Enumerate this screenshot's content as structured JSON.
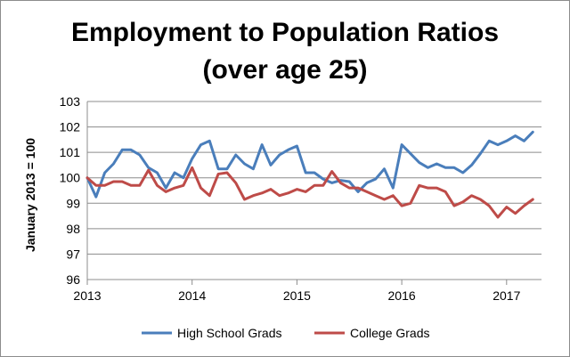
{
  "chart_data": {
    "type": "line",
    "title_lines": [
      "Employment to Population Ratios",
      "(over age 25)"
    ],
    "ylabel": "January 2013 = 100",
    "xlabel": "",
    "ylim": [
      96,
      103
    ],
    "yticks": [
      96,
      97,
      98,
      99,
      100,
      101,
      102,
      103
    ],
    "xlim": [
      2013,
      2017.333
    ],
    "xticks": [
      2013,
      2014,
      2015,
      2016,
      2017
    ],
    "x_start": 2013,
    "x_step_months": 1,
    "grid": true,
    "legend_position": "bottom",
    "series": [
      {
        "name": "High School Grads",
        "color": "#4a7ebb",
        "values": [
          100.0,
          99.25,
          100.2,
          100.55,
          101.1,
          101.1,
          100.9,
          100.4,
          100.2,
          99.6,
          100.2,
          100.0,
          100.75,
          101.3,
          101.45,
          100.35,
          100.35,
          100.9,
          100.55,
          100.35,
          101.3,
          100.5,
          100.9,
          101.1,
          101.25,
          100.2,
          100.2,
          99.95,
          99.8,
          99.9,
          99.85,
          99.45,
          99.8,
          99.95,
          100.35,
          99.6,
          101.3,
          100.95,
          100.6,
          100.4,
          100.55,
          100.4,
          100.4,
          100.2,
          100.5,
          100.95,
          101.45,
          101.3,
          101.45,
          101.65,
          101.45,
          101.8
        ]
      },
      {
        "name": "College Grads",
        "color": "#be4b48",
        "values": [
          100.0,
          99.7,
          99.7,
          99.85,
          99.85,
          99.7,
          99.7,
          100.3,
          99.7,
          99.45,
          99.6,
          99.7,
          100.4,
          99.6,
          99.3,
          100.15,
          100.2,
          99.8,
          99.15,
          99.3,
          99.4,
          99.55,
          99.3,
          99.4,
          99.55,
          99.45,
          99.7,
          99.7,
          100.25,
          99.8,
          99.6,
          99.6,
          99.45,
          99.3,
          99.15,
          99.3,
          98.9,
          99.0,
          99.7,
          99.6,
          99.6,
          99.45,
          98.9,
          99.05,
          99.3,
          99.15,
          98.9,
          98.45,
          98.85,
          98.6,
          98.9,
          99.15
        ]
      }
    ]
  }
}
